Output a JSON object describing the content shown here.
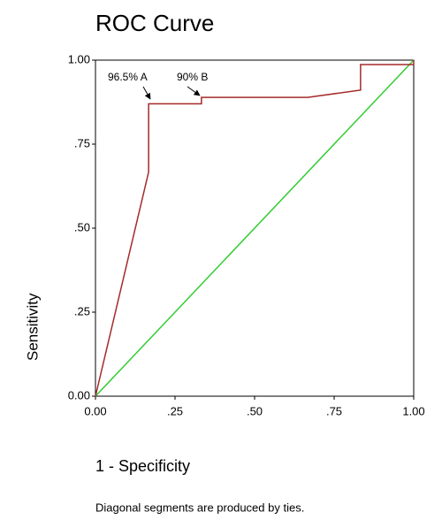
{
  "chart_data": {
    "type": "line",
    "title": "ROC Curve",
    "x_label": "1 - Specificity",
    "y_label": "Sensitivity",
    "footnote": "Diagonal segments are produced by ties.",
    "annotations": [
      "96.5% A",
      "90% B"
    ],
    "series": [
      {
        "color": "#a52a2a",
        "x": [
          0,
          0.167,
          0.167,
          0.333,
          0.333,
          0.667,
          0.833,
          0.833,
          1,
          1
        ],
        "values": [
          0,
          0.667,
          0.87,
          0.87,
          0.889,
          0.889,
          0.911,
          0.987,
          0.987,
          1
        ]
      },
      {
        "color": "#33cc33",
        "x": [
          0,
          1
        ],
        "values": [
          0,
          1
        ]
      }
    ],
    "xlim": [
      0,
      1
    ],
    "ylim": [
      0,
      1
    ],
    "xticks": [
      {
        "value": 0,
        "label": "0.00"
      },
      {
        "value": 0.25,
        "label": ".25"
      },
      {
        "value": 0.5,
        "label": ".50"
      },
      {
        "value": 0.75,
        "label": ".75"
      },
      {
        "value": 1,
        "label": "1.00"
      }
    ],
    "yticks": [
      {
        "value": 0,
        "label": "0.00"
      },
      {
        "value": 0.25,
        "label": ".25"
      },
      {
        "value": 0.5,
        "label": ".50"
      },
      {
        "value": 0.75,
        "label": ".75"
      },
      {
        "value": 1,
        "label": "1.00"
      }
    ]
  }
}
